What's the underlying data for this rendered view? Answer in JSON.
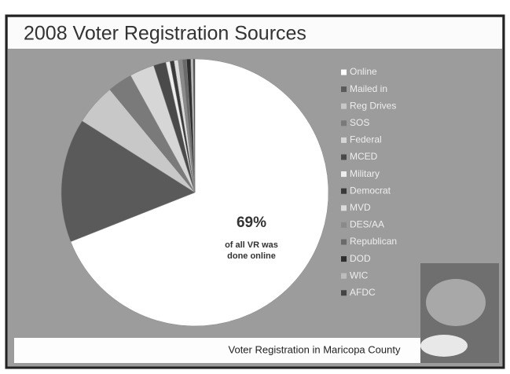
{
  "chart_data": {
    "type": "pie",
    "title": "2008 Voter Registration Sources",
    "categories": [
      "Online",
      "Mailed in",
      "Reg Drives",
      "SOS",
      "Federal",
      "MCED",
      "Military",
      "Democrat",
      "MVD",
      "DES/AA",
      "Republican",
      "DOD",
      "WIC",
      "AFDC"
    ],
    "values": [
      69,
      15,
      5,
      3,
      3,
      1.5,
      0.5,
      0.5,
      0.5,
      0.5,
      0.5,
      0.5,
      0.3,
      0.2
    ],
    "value_labels": [
      "69%",
      null,
      null,
      null,
      null,
      null,
      null,
      null,
      null,
      null,
      null,
      null,
      null,
      null
    ],
    "colors": [
      "#ffffff",
      "#5a5a5a",
      "#c8c8c8",
      "#7a7a7a",
      "#d6d6d6",
      "#4a4a4a",
      "#eeeeee",
      "#3a3a3a",
      "#dcdcdc",
      "#8a8a8a",
      "#6a6a6a",
      "#2e2e2e",
      "#bdbdbd",
      "#444444"
    ],
    "annotation": "of all VR was done online",
    "footer": "Voter Registration in Maricopa County"
  }
}
